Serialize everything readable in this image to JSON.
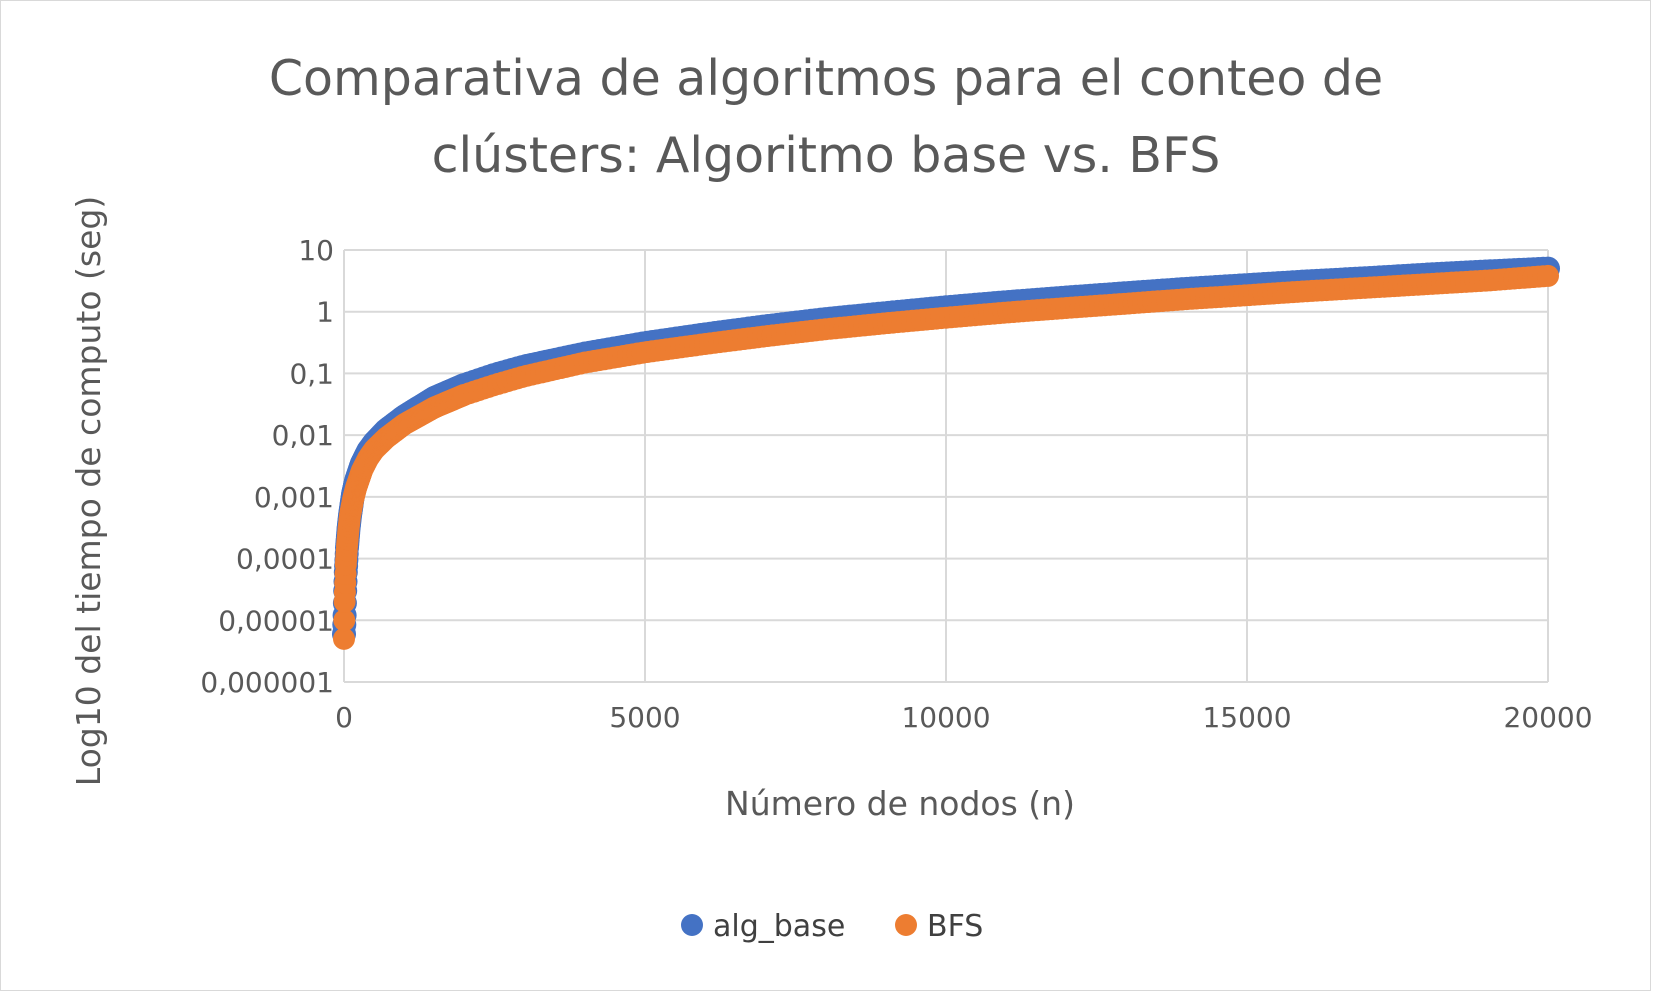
{
  "chart_data": {
    "type": "scatter",
    "title_lines": [
      "Comparativa de algoritmos para el conteo de",
      "clústers: Algoritmo base vs. BFS"
    ],
    "xlabel": "Número de nodos (n)",
    "ylabel": "Log10 del tiempo de computo (seg)",
    "xlim": [
      0,
      20000
    ],
    "ylim": [
      1e-06,
      10
    ],
    "y_scale": "log10",
    "grid": true,
    "legend_position": "bottom",
    "x_ticks": [
      "0",
      "5000",
      "10000",
      "15000",
      "20000"
    ],
    "y_ticks": [
      "10",
      "1",
      "0,1",
      "0,01",
      "0,001",
      "0,0001",
      "0,00001",
      "0,000001"
    ],
    "series": [
      {
        "name": "alg_base",
        "color": "#4472c4",
        "x": [
          0,
          10,
          20,
          30,
          50,
          75,
          100,
          150,
          200,
          300,
          400,
          500,
          700,
          1000,
          1500,
          2000,
          2500,
          3000,
          4000,
          5000,
          6000,
          7000,
          8000,
          9000,
          10000,
          11000,
          12000,
          13000,
          14000,
          15000,
          16000,
          17000,
          18000,
          19000,
          20000
        ],
        "y": [
          6e-06,
          1.2e-05,
          3e-05,
          6e-05,
          0.00015,
          0.0003,
          0.0005,
          0.0011,
          0.0018,
          0.0035,
          0.0055,
          0.0075,
          0.012,
          0.02,
          0.04,
          0.065,
          0.095,
          0.13,
          0.21,
          0.31,
          0.43,
          0.58,
          0.76,
          0.95,
          1.18,
          1.43,
          1.7,
          2.0,
          2.35,
          2.7,
          3.1,
          3.5,
          4.0,
          4.5,
          5.0
        ]
      },
      {
        "name": "BFS",
        "color": "#ed7d31",
        "x": [
          0,
          10,
          20,
          30,
          50,
          75,
          100,
          150,
          200,
          300,
          400,
          500,
          700,
          1000,
          1500,
          2000,
          2500,
          3000,
          4000,
          5000,
          6000,
          7000,
          8000,
          9000,
          10000,
          11000,
          12000,
          13000,
          14000,
          15000,
          16000,
          17000,
          18000,
          19000,
          20000
        ],
        "y": [
          5e-06,
          2e-05,
          4e-05,
          8e-05,
          0.00016,
          0.0003,
          0.0005,
          0.0009,
          0.0014,
          0.0027,
          0.0042,
          0.0058,
          0.009,
          0.015,
          0.028,
          0.045,
          0.065,
          0.09,
          0.15,
          0.22,
          0.3,
          0.4,
          0.52,
          0.65,
          0.8,
          0.97,
          1.15,
          1.35,
          1.6,
          1.85,
          2.15,
          2.45,
          2.8,
          3.2,
          3.8
        ]
      }
    ]
  }
}
